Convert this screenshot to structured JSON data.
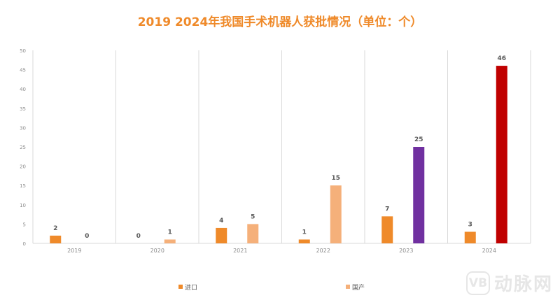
{
  "chart_data": {
    "type": "bar",
    "title": "2019  2024年我国手术机器人获批情况（单位：个）",
    "categories": [
      "2019",
      "2020",
      "2021",
      "2022",
      "2023",
      "2024"
    ],
    "series": [
      {
        "name": "进口",
        "values": [
          2,
          0,
          4,
          1,
          7,
          3
        ]
      },
      {
        "name": "国产",
        "values": [
          0,
          1,
          5,
          15,
          25,
          46
        ]
      }
    ],
    "domestic_bar_colors": [
      "#f5b07a",
      "#f5b07a",
      "#f5b07a",
      "#f5b07a",
      "#7030a0",
      "#c00000"
    ],
    "yticks": [
      "0",
      "5",
      "10",
      "15",
      "20",
      "25",
      "30",
      "35",
      "40",
      "45",
      "50"
    ],
    "ylim": [
      0,
      50
    ],
    "grid": "vertical category separators",
    "legend_position": "bottom",
    "colors": {
      "imported": "#ef8a2a",
      "domestic": "#f5b07a",
      "title": "#ef8a2a",
      "label": "#595959",
      "axis": "#d9d9d9"
    }
  },
  "watermark": {
    "badge": "VB",
    "text": "动脉网"
  }
}
